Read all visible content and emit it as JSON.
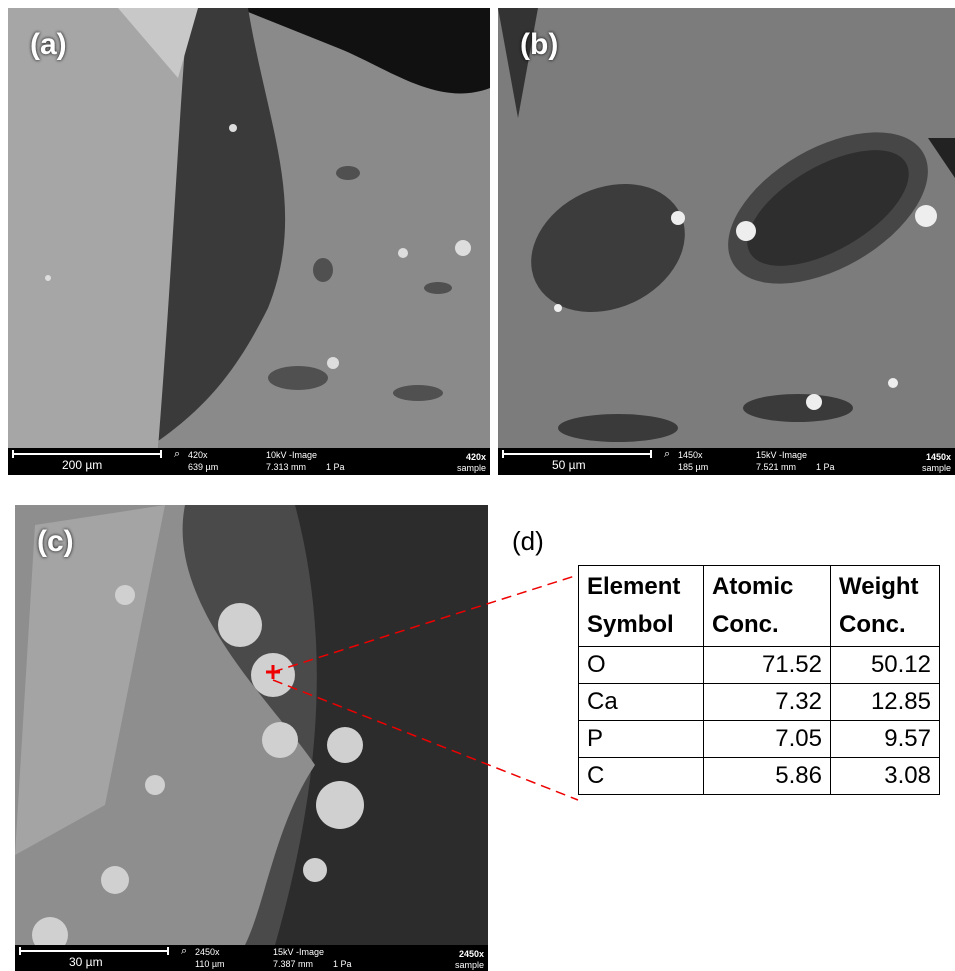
{
  "panels": [
    {
      "label": "(a)",
      "scale_bar": "200 µm",
      "magnification": "420x",
      "field": "639 µm",
      "mode": "10kV -Image",
      "working_distance": "7.313 mm",
      "pressure": "1 Pa",
      "mag_badge": "420x",
      "sample": "sample"
    },
    {
      "label": "(b)",
      "scale_bar": "50 µm",
      "magnification": "1450x",
      "field": "185 µm",
      "mode": "15kV -Image",
      "working_distance": "7.521 mm",
      "pressure": "1 Pa",
      "mag_badge": "1450x",
      "sample": "sample"
    },
    {
      "label": "(c)",
      "scale_bar": "30 µm",
      "magnification": "2450x",
      "field": "110 µm",
      "mode": "15kV -Image",
      "working_distance": "7.387 mm",
      "pressure": "1 Pa",
      "mag_badge": "2450x",
      "sample": "sample"
    }
  ],
  "table": {
    "label": "(d)",
    "header": [
      "Element Symbol",
      "Atomic Conc.",
      "Weight Conc."
    ],
    "rows": [
      [
        "O",
        "71.52",
        "50.12"
      ],
      [
        "Ca",
        "7.32",
        "12.85"
      ],
      [
        "P",
        "7.05",
        "9.57"
      ],
      [
        "C",
        "5.86",
        "3.08"
      ]
    ]
  }
}
